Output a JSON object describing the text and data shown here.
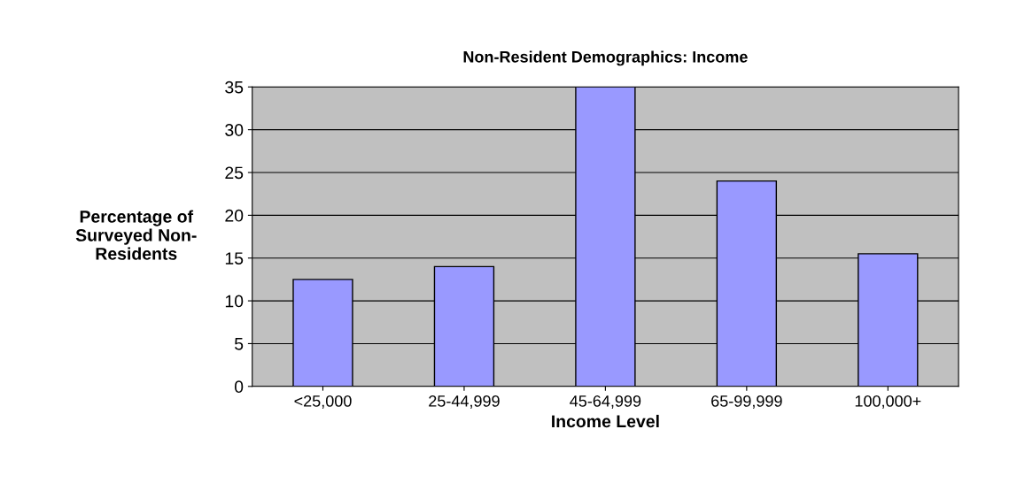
{
  "chart_data": {
    "type": "bar",
    "title": "Non-Resident Demographics: Income",
    "xlabel": "Income Level",
    "ylabel": "Percentage of\nSurveyed Non-\nResidents",
    "categories": [
      "<25,000",
      "25-44,999",
      "45-64,999",
      "65-99,999",
      "100,000+"
    ],
    "series": [
      {
        "color": "#9999ff",
        "values": [
          12.5,
          14,
          35,
          24,
          15.5
        ]
      }
    ],
    "ylim": [
      0,
      35
    ],
    "yticks": [
      0,
      5,
      10,
      15,
      20,
      25,
      30,
      35
    ],
    "grid": "y"
  }
}
